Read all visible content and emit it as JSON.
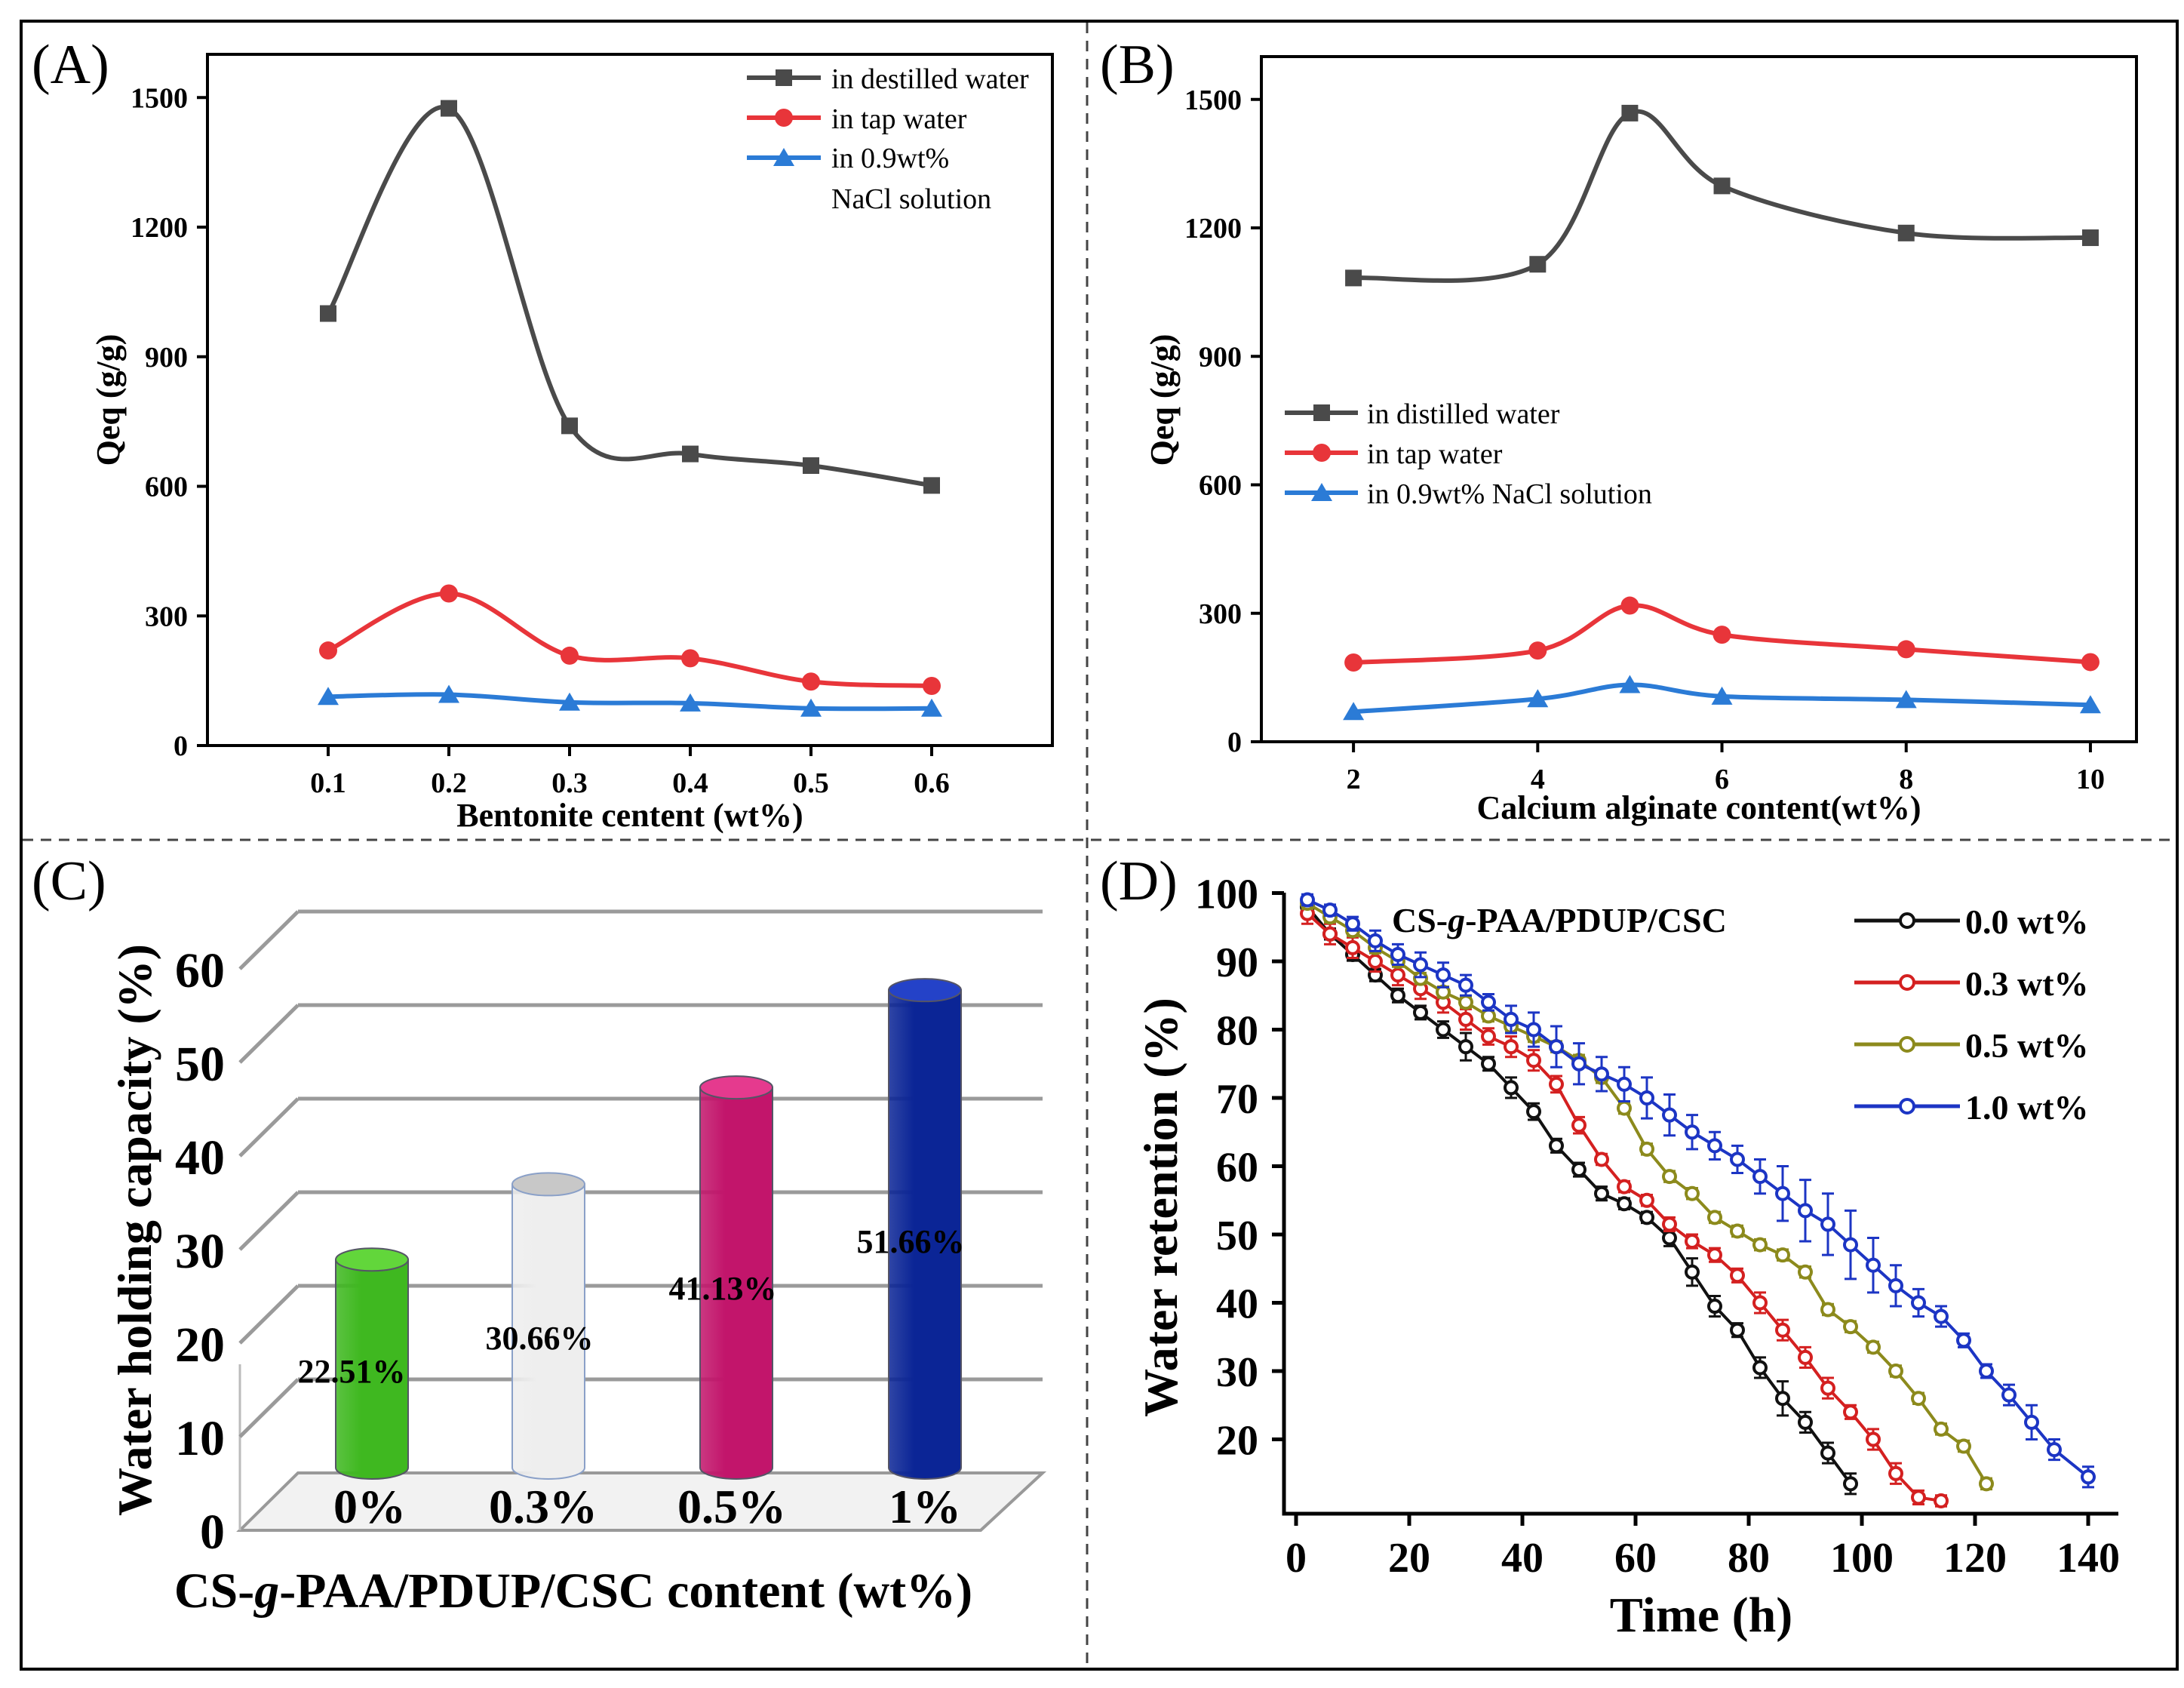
{
  "figure": {
    "frame_color": "#000000",
    "divider_color": "#555555"
  },
  "chart_data": [
    {
      "panel_label": "(A)",
      "type": "line",
      "title": "",
      "xlabel": "Bentonite centent (wt%)",
      "ylabel": "Qeq (g/g)",
      "xlim": [
        0.0,
        0.7
      ],
      "ylim": [
        0,
        1600
      ],
      "x_ticks": [
        0.1,
        0.2,
        0.3,
        0.4,
        0.5,
        0.6
      ],
      "x_tick_labels": [
        "0.1",
        "0.2",
        "0.3",
        "0.4",
        "0.5",
        "0.6"
      ],
      "y_ticks": [
        0,
        300,
        600,
        900,
        1200,
        1500
      ],
      "y_tick_labels": [
        "0",
        "300",
        "600",
        "900",
        "1200",
        "1500"
      ],
      "legend_position": "top-right",
      "x": [
        0.1,
        0.2,
        0.3,
        0.4,
        0.5,
        0.6
      ],
      "series": [
        {
          "name": "in destilled water",
          "color": "#4a4a4a",
          "marker": "square",
          "values": [
            1000,
            1475,
            740,
            675,
            648,
            602
          ]
        },
        {
          "name": "in tap water",
          "color": "#e8353a",
          "marker": "circle",
          "values": [
            220,
            352,
            208,
            202,
            148,
            138
          ]
        },
        {
          "name": "in 0.9wt% NaCl solution",
          "legend_lines": [
            "in 0.9wt%",
            "NaCl solution"
          ],
          "color": "#2b7bd6",
          "marker": "triangle",
          "values": [
            113,
            118,
            100,
            98,
            86,
            86
          ]
        }
      ]
    },
    {
      "panel_label": "(B)",
      "type": "line",
      "title": "",
      "xlabel": "Calcium alginate content(wt%)",
      "ylabel": "Qeq (g/g)",
      "xlim": [
        1.0,
        10.5
      ],
      "ylim": [
        0,
        1600
      ],
      "x_ticks": [
        2,
        4,
        6,
        8,
        10
      ],
      "x_tick_labels": [
        "2",
        "4",
        "6",
        "8",
        "10"
      ],
      "y_ticks": [
        0,
        300,
        600,
        900,
        1200,
        1500
      ],
      "y_tick_labels": [
        "0",
        "300",
        "600",
        "900",
        "1200",
        "1500"
      ],
      "legend_position": "middle-left",
      "x": [
        2,
        4,
        5,
        6,
        8,
        10
      ],
      "series": [
        {
          "name": "in distilled water",
          "color": "#4a4a4a",
          "marker": "square",
          "values": [
            1083,
            1115,
            1468,
            1298,
            1188,
            1177
          ]
        },
        {
          "name": "in tap water",
          "color": "#e8353a",
          "marker": "circle",
          "values": [
            185,
            213,
            318,
            250,
            216,
            186
          ]
        },
        {
          "name": "in 0.9wt% NaCl solution",
          "color": "#2b7bd6",
          "marker": "triangle",
          "values": [
            70,
            100,
            133,
            106,
            98,
            86
          ]
        }
      ]
    },
    {
      "panel_label": "(C)",
      "type": "bar",
      "title": "",
      "xlabel": "CS-g-PAA/PDUP/CSC content (wt%)",
      "xlabel_parts": [
        "CS-",
        "g",
        "-PAA/PDUP/CSC content (wt%)"
      ],
      "ylabel": "Water holding capacity (%)",
      "ylim": [
        0,
        60
      ],
      "y_ticks": [
        0,
        10,
        20,
        30,
        40,
        50,
        60
      ],
      "y_tick_labels": [
        "0",
        "10",
        "20",
        "30",
        "40",
        "50",
        "60"
      ],
      "categories": [
        "0%",
        "0.3%",
        "0.5%",
        "1%"
      ],
      "values": [
        22.51,
        30.66,
        41.13,
        51.66
      ],
      "data_labels": [
        "22.51%",
        "30.66%",
        "41.13%",
        "51.66%"
      ],
      "colors": [
        "#3fb820",
        "#eeeeee",
        "#c2156b",
        "#0b2596"
      ]
    },
    {
      "panel_label": "(D)",
      "type": "line",
      "title": "CS-g-PAA/PDUP/CSC",
      "title_parts": [
        "CS-",
        "g",
        "-PAA/PDUP/CSC"
      ],
      "xlabel": "Time (h)",
      "ylabel": "Water retention (%)",
      "xlim": [
        -3,
        147
      ],
      "ylim": [
        10,
        101
      ],
      "x_ticks": [
        0,
        20,
        40,
        60,
        80,
        100,
        120,
        140
      ],
      "x_tick_labels": [
        "0",
        "20",
        "40",
        "60",
        "80",
        "100",
        "120",
        "140"
      ],
      "y_ticks": [
        20,
        30,
        40,
        50,
        60,
        70,
        80,
        90,
        100
      ],
      "y_tick_labels": [
        "20",
        "30",
        "40",
        "50",
        "60",
        "70",
        "80",
        "90",
        "100"
      ],
      "legend_position": "top-right",
      "series": [
        {
          "name": "0.0 wt%",
          "color": "#111111",
          "x": [
            2,
            6,
            10,
            14,
            18,
            22,
            26,
            30,
            34,
            38,
            42,
            46,
            50,
            54,
            58,
            62,
            66,
            70,
            74,
            78,
            82,
            86,
            90,
            94,
            98
          ],
          "values": [
            98,
            94,
            91,
            88,
            85,
            82.5,
            80,
            77.5,
            75,
            71.5,
            68,
            63,
            59.5,
            56,
            54.5,
            52.5,
            49.5,
            44.5,
            39.5,
            36,
            30.5,
            26,
            22.5,
            18,
            13.5
          ],
          "errors": [
            0.8,
            0.8,
            0.9,
            0.9,
            1,
            1,
            1.2,
            2,
            1,
            1.5,
            1.2,
            1,
            1,
            1,
            0.8,
            0.8,
            1.2,
            2,
            1.5,
            1,
            1.5,
            2.5,
            1.5,
            1.5,
            1.5
          ]
        },
        {
          "name": "0.3 wt%",
          "color": "#d42020",
          "x": [
            2,
            6,
            10,
            14,
            18,
            22,
            26,
            30,
            34,
            38,
            42,
            46,
            50,
            54,
            58,
            62,
            66,
            70,
            74,
            78,
            82,
            86,
            90,
            94,
            98,
            102,
            106,
            110,
            114
          ],
          "values": [
            97,
            94,
            92,
            90,
            88,
            86,
            84,
            81.5,
            79,
            77.5,
            75.5,
            72,
            66,
            61,
            57,
            55,
            51.5,
            49,
            47,
            44,
            40,
            36,
            32,
            27.5,
            24,
            20,
            15,
            11.5,
            11
          ],
          "errors": [
            1.5,
            1.5,
            1.5,
            1.5,
            1.5,
            1.5,
            1.5,
            1.5,
            1.2,
            1.5,
            1.5,
            1.2,
            1.2,
            0.8,
            0.8,
            0.8,
            1,
            1,
            1,
            1,
            1.5,
            1.5,
            1.5,
            1.5,
            1,
            1.5,
            1.5,
            1,
            0.8
          ]
        },
        {
          "name": "0.5 wt%",
          "color": "#8c8a1c",
          "x": [
            2,
            6,
            10,
            14,
            18,
            22,
            26,
            30,
            34,
            38,
            42,
            46,
            50,
            54,
            58,
            62,
            66,
            70,
            74,
            78,
            82,
            86,
            90,
            94,
            98,
            102,
            106,
            110,
            114,
            118,
            122
          ],
          "values": [
            98.5,
            96.5,
            94.5,
            92,
            90,
            87.5,
            85.5,
            84,
            82,
            80.5,
            79,
            77.5,
            75.5,
            73,
            68.5,
            62.5,
            58.5,
            56,
            52.5,
            50.5,
            48.5,
            47,
            44.5,
            39,
            36.5,
            33.5,
            30,
            26,
            21.5,
            19,
            13.5
          ],
          "errors": [
            0.8,
            0.8,
            0.8,
            0.8,
            0.8,
            0.8,
            0.8,
            0.8,
            0.8,
            0.8,
            0.8,
            0.8,
            0.8,
            0.8,
            0.8,
            0.8,
            0.8,
            0.8,
            0.8,
            0.8,
            0.8,
            0.8,
            0.8,
            0.8,
            0.8,
            0.8,
            0.8,
            0.8,
            0.8,
            0.8,
            0.8
          ]
        },
        {
          "name": "1.0 wt%",
          "color": "#1c35c4",
          "x": [
            2,
            6,
            10,
            14,
            18,
            22,
            26,
            30,
            34,
            38,
            42,
            46,
            50,
            54,
            58,
            62,
            66,
            70,
            74,
            78,
            82,
            86,
            90,
            94,
            98,
            102,
            106,
            110,
            114,
            118,
            122,
            126,
            130,
            134,
            140
          ],
          "values": [
            99,
            97.5,
            95.5,
            93,
            91,
            89.5,
            88,
            86.5,
            84,
            81.5,
            80,
            77.5,
            75,
            73.5,
            72,
            70,
            67.5,
            65,
            63,
            61,
            58.5,
            56,
            53.5,
            51.5,
            48.5,
            45.5,
            42.5,
            40,
            38,
            34.5,
            30,
            26.5,
            22.5,
            18.5,
            14.5
          ],
          "errors": [
            0.8,
            0.8,
            1,
            1.5,
            1.5,
            1.8,
            1.8,
            1.5,
            1.2,
            2,
            2.5,
            3,
            3,
            2.5,
            2.5,
            3,
            3,
            2.5,
            2,
            2,
            2.5,
            4,
            4.5,
            4.5,
            5,
            4,
            3,
            2,
            1.5,
            1,
            1,
            1.5,
            2.5,
            1.5,
            1.5
          ]
        }
      ]
    }
  ]
}
